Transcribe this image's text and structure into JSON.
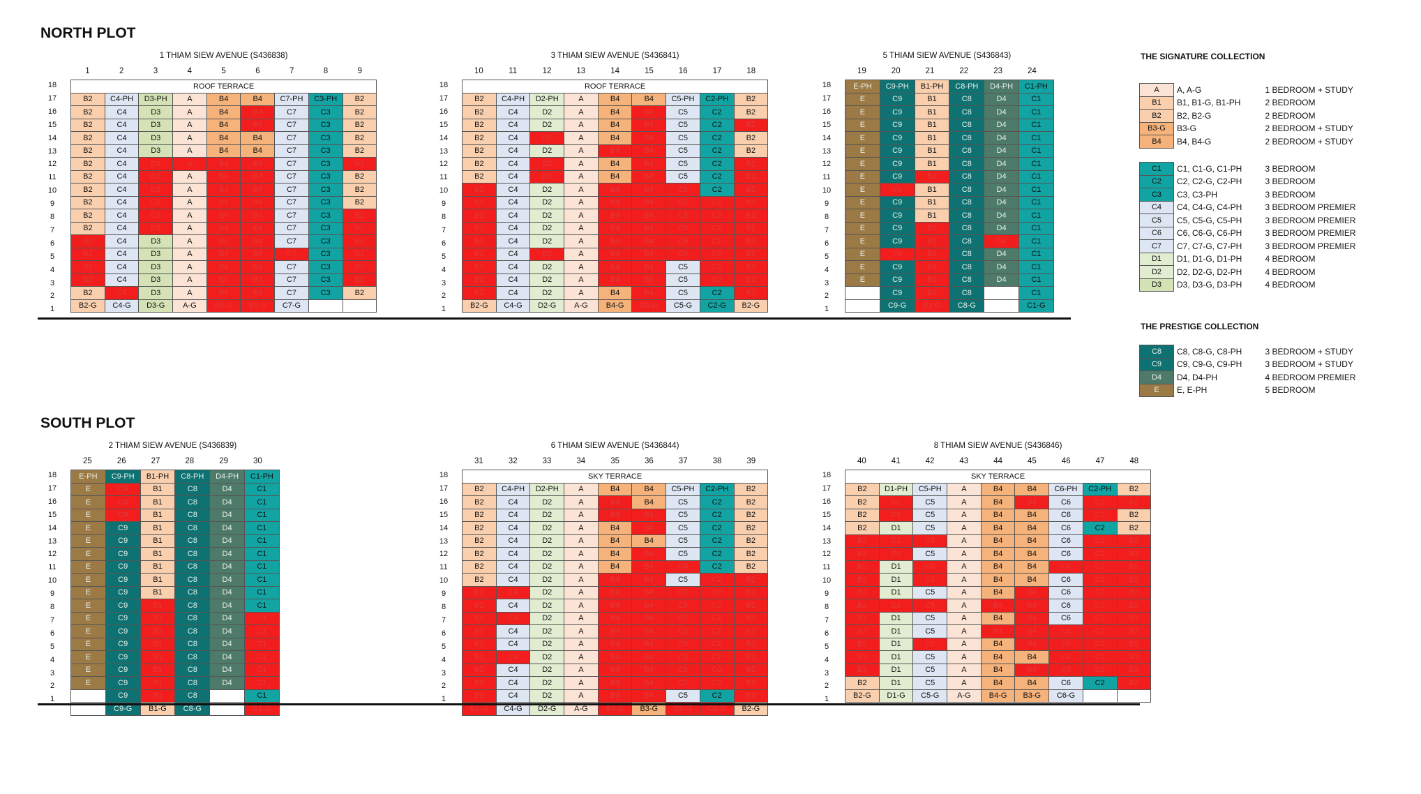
{
  "colors": {
    "A": "#fbe4d5",
    "B1": "#f9cfae",
    "B2": "#f9cfae",
    "B3": "#f5b27a",
    "B4": "#f5b27a",
    "C1": "#12a3a3",
    "C2": "#12a3a3",
    "C3": "#12a3a3",
    "C4": "#dde6f2",
    "C5": "#dde6f2",
    "C6": "#dde6f2",
    "C7": "#dde6f2",
    "D1": "#e2ecd1",
    "D2": "#e2ecd1",
    "D3": "#d4e2b6",
    "C8": "#0e7272",
    "C9": "#0e7272",
    "D4": "#4e7a6a",
    "E": "#9c7a45",
    "SOLD": "#f21d1d",
    "BLANK": "#ffffff",
    "ROOF": "#ffffff"
  },
  "sold_text_color": "#e03a3a",
  "north": {
    "title": "NORTH PLOT",
    "blocks": [
      {
        "name": "1 THIAM SIEW AVENUE (S436838)",
        "left": 55,
        "top": 74,
        "cols": [
          "1",
          "2",
          "3",
          "4",
          "5",
          "6",
          "7",
          "8",
          "9"
        ],
        "cols_str": "B2|C4|D3|A|B4|B4|C7|C3|B2",
        "terrace": "ROOF TERRACE",
        "rows": [
          "B2,C4-PH,D3-PH,A,B4,B4,C7-PH,C3-PH,B2",
          "B2,C4,D3,A,B4,B4*,C7,C3,B2",
          "B2,C4,D3,A,B4,B4*,C7,C3,B2",
          "B2,C4,D3,A,B4,B4,C7,C3,B2",
          "B2,C4,D3,A,B4,B4,C7,C3,B2",
          "B2,C4,D3*,A*,B4*,B4*,C7,C3,B2*",
          "B2,C4,D3*,A,B4*,B4*,C7,C3,B2",
          "B2,C4,D3*,A,B4*,B4*,C7,C3,B2",
          "B2,C4,D3*,A,B4*,B4*,C7,C3,B2",
          "B2,C4,D3*,A,B4*,B4*,C7,C3,B2*",
          "B2,C4,D3*,A,B4*,B4*,C7,C3,B2*",
          "B2*,C4,D3,A,B4*,B4*,C7,C3,B2*",
          "B2*,C4,D3,A,B4*,B4*,C7*,C3,B2*",
          "B2*,C4,D3,A,B4*,B4*,C7,C3,B2*",
          "B2*,C4,D3,A,B4*,B4*,C7,C3,B2*",
          "B2,C4*,D3,A,B4*,B4*,C7,C3,B2",
          "B2-G,C4-G,D3-G,A-G,B4-G*,B3-G*,C7-G,_,_"
        ]
      },
      {
        "name": "3 THIAM SIEW AVENUE (S436841)",
        "left": 616,
        "top": 74,
        "cols": [
          "10",
          "11",
          "12",
          "13",
          "14",
          "15",
          "16",
          "17",
          "18"
        ],
        "terrace": "ROOF TERRACE",
        "rows": [
          "B2,C4-PH,D2-PH,A,B4,B4,C5-PH,C2-PH,B2",
          "B2,C4,D2,A,B4,B4*,C5,C2,B2",
          "B2,C4,D2,A,B4,B4*,C5,C2,B2*",
          "B2,C4,D2*,A,B4,B4*,C5,C2,B2",
          "B2,C4,D2,A,B4*,B4*,C5,C2,B2",
          "B2,C4,D2*,A,B4,B4*,C5,C2,B2*",
          "B2,C4,D2*,A,B4,B4*,C5,C2,B2*",
          "B2*,C4,D2,A,B4*,B4*,C5*,C2,B2*",
          "B2*,C4,D2,A,B4*,B4*,C5*,C2*,B2*",
          "B2*,C4,D2,A,B4*,B4*,C5*,C2*,B2*",
          "B2*,C4,D2,A,B4*,B4*,C5*,C2*,B2*",
          "B2*,C4,D2,A,B4*,B4*,C5*,C2*,B2*",
          "B2*,C4,D2*,A,B4*,B4*,C5*,C2*,B2*",
          "B2*,C4,D2,A,B4*,B4*,C5,C2*,B2*",
          "B2*,C4,D2,A,B4*,B4*,C5,C2*,B2*",
          "B2*,C4,D2,A,B4,B4*,C5,C2,B2*",
          "B2-G,C4-G,D2-G,A-G,B4-G,B3-G*,C5-G,C2-G,B2-G"
        ]
      },
      {
        "name": "5 THIAM SIEW AVENUE (S436843)",
        "left": 1165,
        "top": 74,
        "cols": [
          "19",
          "20",
          "21",
          "22",
          "23",
          "24"
        ],
        "terrace": "",
        "rows": [
          "E-PH,C9-PH,B1-PH,C8-PH,D4-PH,C1-PH",
          "E,C9,B1,C8,D4,C1",
          "E,C9,B1,C8,D4,C1",
          "E,C9,B1,C8,D4,C1",
          "E,C9,B1,C8,D4,C1",
          "E,C9,B1,C8,D4,C1",
          "E,C9,B1,C8,D4,C1",
          "E,C9,B1*,C8,D4,C1",
          "E,C9*,B1,C8,D4,C1",
          "E,C9,B1,C8,D4,C1",
          "E,C9,B1,C8,D4,C1",
          "E,C9,B1*,C8,D4,C1",
          "E,C9,B1*,C8,D4*,C1",
          "E,C9*,B1*,C8,D4,C1",
          "E,C9,B1*,C8,D4,C1",
          "E,C9,B1*,C8,D4,C1",
          "_,C9,B1*,C8,_,C1",
          "_,C9-G,B1-G*,C8-G,_,C1-G"
        ]
      }
    ]
  },
  "south": {
    "title": "SOUTH PLOT",
    "blocks": [
      {
        "name": "2 THIAM SIEW AVENUE (S436839)",
        "left": 55,
        "top": 633,
        "cols": [
          "25",
          "26",
          "27",
          "28",
          "29",
          "30"
        ],
        "terrace": "",
        "rows": [
          "E-PH,C9-PH,B1-PH,C8-PH,D4-PH,C1-PH",
          "E,C9*,B1,C8,D4,C1",
          "E,C9*,B1,C8,D4,C1",
          "E,C9*,B1,C8,D4,C1",
          "E,C9,B1,C8,D4,C1",
          "E,C9,B1,C8,D4,C1",
          "E,C9,B1,C8,D4,C1",
          "E,C9,B1,C8,D4,C1",
          "E,C9,B1,C8,D4,C1",
          "E,C9,B1,C8,D4,C1",
          "E,C9,B1*,C8,D4,C1",
          "E,C9,B1*,C8,D4,C1*",
          "E,C9,B1*,C8,D4,C1*",
          "E,C9,B1*,C8,D4,C1*",
          "E,C9,B1*,C8,D4,C1*",
          "E,C9,B1*,C8,D4,C1*",
          "E,C9,B1*,C8,D4,C1*",
          "_,C9,B1*,C8,_,C1",
          "_,C9-G,B1-G,C8-G,_,C1-G*"
        ]
      },
      {
        "name": "6 THIAM SIEW AVENUE (S436844)",
        "left": 616,
        "top": 633,
        "cols": [
          "31",
          "32",
          "33",
          "34",
          "35",
          "36",
          "37",
          "38",
          "39"
        ],
        "terrace": "SKY TERRACE",
        "rows": [
          "B2,C4-PH,D2-PH,A,B4,B4,C5-PH,C2-PH,B2",
          "B2,C4,D2,A,B4*,B4,C5,C2,B2",
          "B2,C4,D2,A,B4*,B4*,C5,C2,B2",
          "B2,C4,D2,A,B4,B4*,C5,C2,B2",
          "B2,C4,D2,A,B4,B4,C5,C2,B2",
          "B2,C4,D2,A,B4,B4*,C5,C2,B2",
          "B2,C4,D2,A,B4,B4*,C5*,C2,B2",
          "B2,C4,D2,A,B4*,B4*,C5,C2*,B2*",
          "B2*,C4*,D2,A,B4*,B4*,C5*,C2*,B2*",
          "B2*,C4,D2,A,B4*,B4*,C5*,C2*,B2*",
          "B2*,C4*,D2,A,B4*,B4*,C5*,C2*,B2*",
          "B2*,C4,D2,A,B4*,B4*,C5*,C2*,B2*",
          "B2*,C4,D2,A,B4*,B4*,C5*,C2*,B2*",
          "B2*,C4*,D2,A,B4*,B4*,C5*,C2*,B2*",
          "B2*,C4,D2,A,B4*,B4*,C5*,C2*,B2*",
          "B2*,C4,D2,A,B4*,B4*,C5*,C2*,B2*",
          "B2*,C4,D2,A,B4*,B4*,C5,C2,B2*",
          "B2-G*,C4-G,D2-G,A-G,B4-G*,B3-G,C5-G*,C2-G*,B2-G"
        ]
      },
      {
        "name": "8 THIAM SIEW AVENUE (S436846)",
        "left": 1165,
        "top": 633,
        "cols": [
          "40",
          "41",
          "42",
          "43",
          "44",
          "45",
          "46",
          "47",
          "48"
        ],
        "terrace": "SKY TERRACE",
        "rows": [
          "B2,D1-PH,C5-PH,A,B4,B4,C6-PH,C2-PH,B2",
          "B2,D1*,C5,A,B4,B4*,C6,C2*,B2*",
          "B2,D1*,C5,A,B4,B4,C6,C2*,B2",
          "B2,D1,C5,A,B4,B4,C6,C2,B2",
          "B2*,D1*,C5*,A,B4,B4,C6,C2*,B2*",
          "B2*,D1*,C5,A,B4,B4,C6,C2*,B2*",
          "B2*,D1,C5*,A,B4,B4,C6*,C2*,B2*",
          "B2*,D1,C5*,A,B4,B4,C6,C2*,B2*",
          "B2*,D1,C5,A,B4,B4*,C6,C2*,B2*",
          "B2*,D1*,C5*,A,B4*,B4*,C6,C2*,B2*",
          "B2*,D1,C5,A,B4,B4*,C6,C2*,B2*",
          "B2*,D1,C5,A,B4*,B4*,C6*,C2*,B2*",
          "B2*,D1,C5*,A,B4,B4*,C6*,C2*,B2*",
          "B2*,D1,C5,A,B4,B4,C6*,C2*,B2*",
          "B2*,D1,C5,A,B4,B4*,C6*,C2*,B2*",
          "B2,D1,C5,A,B4,B4,C6,C2,B2*",
          "B2-G,D1-G,C5-G,A-G,B4-G,B3-G,C6-G,_,_"
        ]
      }
    ]
  },
  "legend": {
    "signature_title": "THE SIGNATURE COLLECTION",
    "prestige_title": "THE PRESTIGE COLLECTION",
    "group1": [
      [
        "A",
        "A, A-G",
        "1 BEDROOM + STUDY"
      ],
      [
        "B1",
        "B1, B1-G, B1-PH",
        "2 BEDROOM"
      ],
      [
        "B2",
        "B2, B2-G",
        "2 BEDROOM"
      ],
      [
        "B3-G",
        "B3-G",
        "2 BEDROOM + STUDY"
      ],
      [
        "B4",
        "B4, B4-G",
        "2 BEDROOM + STUDY"
      ]
    ],
    "group2": [
      [
        "C1",
        "C1, C1-G, C1-PH",
        "3 BEDROOM"
      ],
      [
        "C2",
        "C2, C2-G, C2-PH",
        "3 BEDROOM"
      ],
      [
        "C3",
        "C3, C3-PH",
        "3 BEDROOM"
      ],
      [
        "C4",
        "C4, C4-G, C4-PH",
        "3 BEDROOM PREMIER"
      ],
      [
        "C5",
        "C5, C5-G, C5-PH",
        "3 BEDROOM PREMIER"
      ],
      [
        "C6",
        "C6, C6-G, C6-PH",
        "3 BEDROOM PREMIER"
      ],
      [
        "C7",
        "C7, C7-G, C7-PH",
        "3 BEDROOM PREMIER"
      ],
      [
        "D1",
        "D1, D1-G, D1-PH",
        "4 BEDROOM"
      ],
      [
        "D2",
        "D2, D2-G, D2-PH",
        "4 BEDROOM"
      ],
      [
        "D3",
        "D3, D3-G, D3-PH",
        "4 BEDROOM"
      ]
    ],
    "group3": [
      [
        "C8",
        "C8, C8-G, C8-PH",
        "3 BEDROOM + STUDY"
      ],
      [
        "C9",
        "C9, C9-G, C9-PH",
        "3 BEDROOM + STUDY"
      ],
      [
        "D4",
        "D4, D4-PH",
        "4 BEDROOM PREMIER"
      ],
      [
        "E",
        "E, E-PH",
        "5 BEDROOM"
      ]
    ]
  }
}
